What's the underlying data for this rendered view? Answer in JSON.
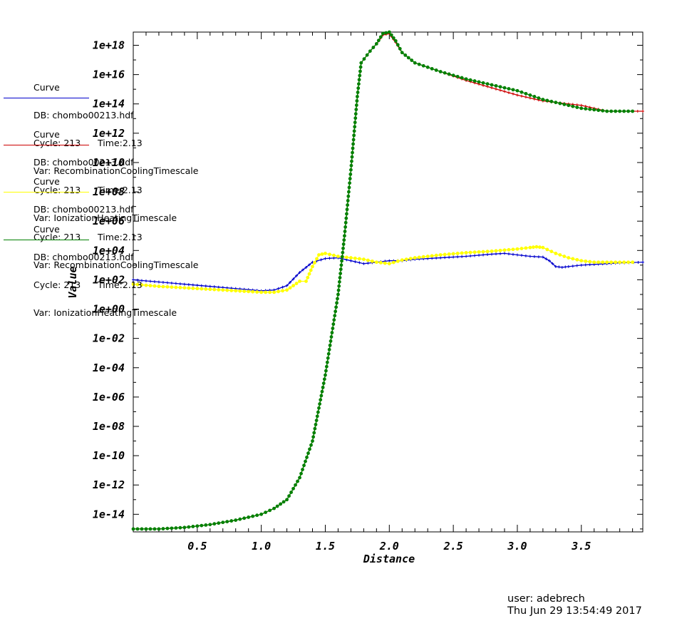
{
  "chart_data": {
    "type": "line",
    "xlabel": "Distance",
    "ylabel": "Value",
    "y_scale": "log",
    "xlim": [
      0.0,
      3.98
    ],
    "ylim_exponent": [
      -15.2,
      18.9
    ],
    "x_ticks": [
      "0.5",
      "1.0",
      "1.5",
      "2.0",
      "2.5",
      "3.0",
      "3.5"
    ],
    "y_ticks": [
      "1e+18",
      "1e+16",
      "1e+14",
      "1e+12",
      "1e+10",
      "1e+08",
      "1e+06",
      "1e+04",
      "1e+02",
      "1e+00",
      "1e-02",
      "1e-04",
      "1e-06",
      "1e-08",
      "1e-10",
      "1e-12",
      "1e-14"
    ],
    "series": [
      {
        "name": "Var: RecombinationCoolingTimescale",
        "color": "#0000cc",
        "marker": "plus",
        "x": [
          0.0,
          0.2,
          0.4,
          0.6,
          0.8,
          1.0,
          1.1,
          1.2,
          1.3,
          1.4,
          1.5,
          1.6,
          1.7,
          1.8,
          1.9,
          2.0,
          2.1,
          2.2,
          2.4,
          2.6,
          2.8,
          2.9,
          3.0,
          3.1,
          3.2,
          3.25,
          3.3,
          3.35,
          3.4,
          3.5,
          3.6,
          3.7,
          3.8,
          3.98
        ],
        "y_log10": [
          2.0,
          1.85,
          1.7,
          1.55,
          1.4,
          1.25,
          1.3,
          1.6,
          2.5,
          3.2,
          3.45,
          3.5,
          3.3,
          3.1,
          3.2,
          3.3,
          3.3,
          3.4,
          3.5,
          3.6,
          3.75,
          3.8,
          3.7,
          3.6,
          3.55,
          3.3,
          2.9,
          2.85,
          2.9,
          3.0,
          3.05,
          3.1,
          3.15,
          3.2
        ]
      },
      {
        "name": "Var: IonizationHeatingTimescale",
        "color": "#cc0000",
        "marker": "plus",
        "x": [
          0.0,
          0.2,
          0.4,
          0.6,
          0.8,
          1.0,
          1.1,
          1.2,
          1.3,
          1.4,
          1.5,
          1.6,
          1.65,
          1.7,
          1.75,
          1.78,
          1.85,
          1.9,
          1.95,
          2.0,
          2.05,
          2.1,
          2.2,
          2.4,
          2.6,
          2.8,
          3.0,
          3.2,
          3.4,
          3.5,
          3.6,
          3.7,
          3.8,
          3.9,
          3.98
        ],
        "y_log10": [
          -15,
          -15,
          -14.9,
          -14.7,
          -14.4,
          -14.0,
          -13.6,
          -13.0,
          -11.5,
          -9.0,
          -4.5,
          1.0,
          5.0,
          9.5,
          14.5,
          16.8,
          17.6,
          18.1,
          18.7,
          18.8,
          18.2,
          17.5,
          16.8,
          16.2,
          15.6,
          15.1,
          14.6,
          14.2,
          14.0,
          13.9,
          13.7,
          13.5,
          13.5,
          13.5,
          13.5
        ]
      },
      {
        "name": "Var: RecombinationCoolingTimescale",
        "color": "#ffff00",
        "marker": "dot",
        "x": [
          0.0,
          0.2,
          0.4,
          0.6,
          0.8,
          1.0,
          1.1,
          1.2,
          1.3,
          1.35,
          1.4,
          1.45,
          1.5,
          1.6,
          1.7,
          1.8,
          1.9,
          2.0,
          2.1,
          2.2,
          2.4,
          2.6,
          2.8,
          3.0,
          3.1,
          3.15,
          3.2,
          3.3,
          3.4,
          3.5,
          3.6,
          3.7,
          3.8,
          3.9
        ],
        "y_log10": [
          1.7,
          1.55,
          1.45,
          1.35,
          1.25,
          1.15,
          1.15,
          1.3,
          1.9,
          1.9,
          2.9,
          3.7,
          3.8,
          3.6,
          3.5,
          3.4,
          3.2,
          3.1,
          3.35,
          3.5,
          3.7,
          3.85,
          3.95,
          4.1,
          4.2,
          4.25,
          4.2,
          3.8,
          3.5,
          3.3,
          3.2,
          3.2,
          3.2,
          3.2
        ]
      },
      {
        "name": "Var: IonizationHeatingTimescale",
        "color": "#008000",
        "marker": "dot",
        "x": [
          0.0,
          0.2,
          0.4,
          0.6,
          0.8,
          1.0,
          1.1,
          1.2,
          1.3,
          1.4,
          1.5,
          1.6,
          1.65,
          1.7,
          1.75,
          1.78,
          1.85,
          1.9,
          1.95,
          2.0,
          2.05,
          2.1,
          2.2,
          2.4,
          2.6,
          2.8,
          3.0,
          3.2,
          3.4,
          3.5,
          3.6,
          3.7,
          3.8,
          3.9
        ],
        "y_log10": [
          -15,
          -15,
          -14.9,
          -14.7,
          -14.4,
          -14.0,
          -13.6,
          -13.0,
          -11.5,
          -9.0,
          -4.5,
          1.0,
          5.0,
          9.5,
          14.5,
          16.8,
          17.6,
          18.1,
          18.8,
          18.9,
          18.3,
          17.5,
          16.8,
          16.2,
          15.7,
          15.3,
          14.9,
          14.3,
          13.9,
          13.7,
          13.6,
          13.5,
          13.5,
          13.5
        ]
      }
    ]
  },
  "legend": [
    {
      "line1": "Curve",
      "line2": "DB: chombo00213.hdf",
      "line3": "Cycle: 213      Time:2.13",
      "line4": "Var: RecombinationCoolingTimescale",
      "color": "#0000cc"
    },
    {
      "line1": "Curve",
      "line2": "DB: chombo00213.hdf",
      "line3": "Cycle: 213      Time:2.13",
      "line4": "Var: IonizationHeatingTimescale",
      "color": "#cc0000"
    },
    {
      "line1": "Curve",
      "line2": "DB: chombo00213.hdf",
      "line3": "Cycle: 213      Time:2.13",
      "line4": "Var: RecombinationCoolingTimescale",
      "color": "#ffff00"
    },
    {
      "line1": "Curve",
      "line2": "DB: chombo00213.hdf",
      "line3": "Cycle: 213      Time:2.13",
      "line4": "Var: IonizationHeatingTimescale",
      "color": "#008000"
    }
  ],
  "footer": {
    "user": "user: adebrech",
    "timestamp": "Thu Jun 29 13:54:49 2017"
  }
}
